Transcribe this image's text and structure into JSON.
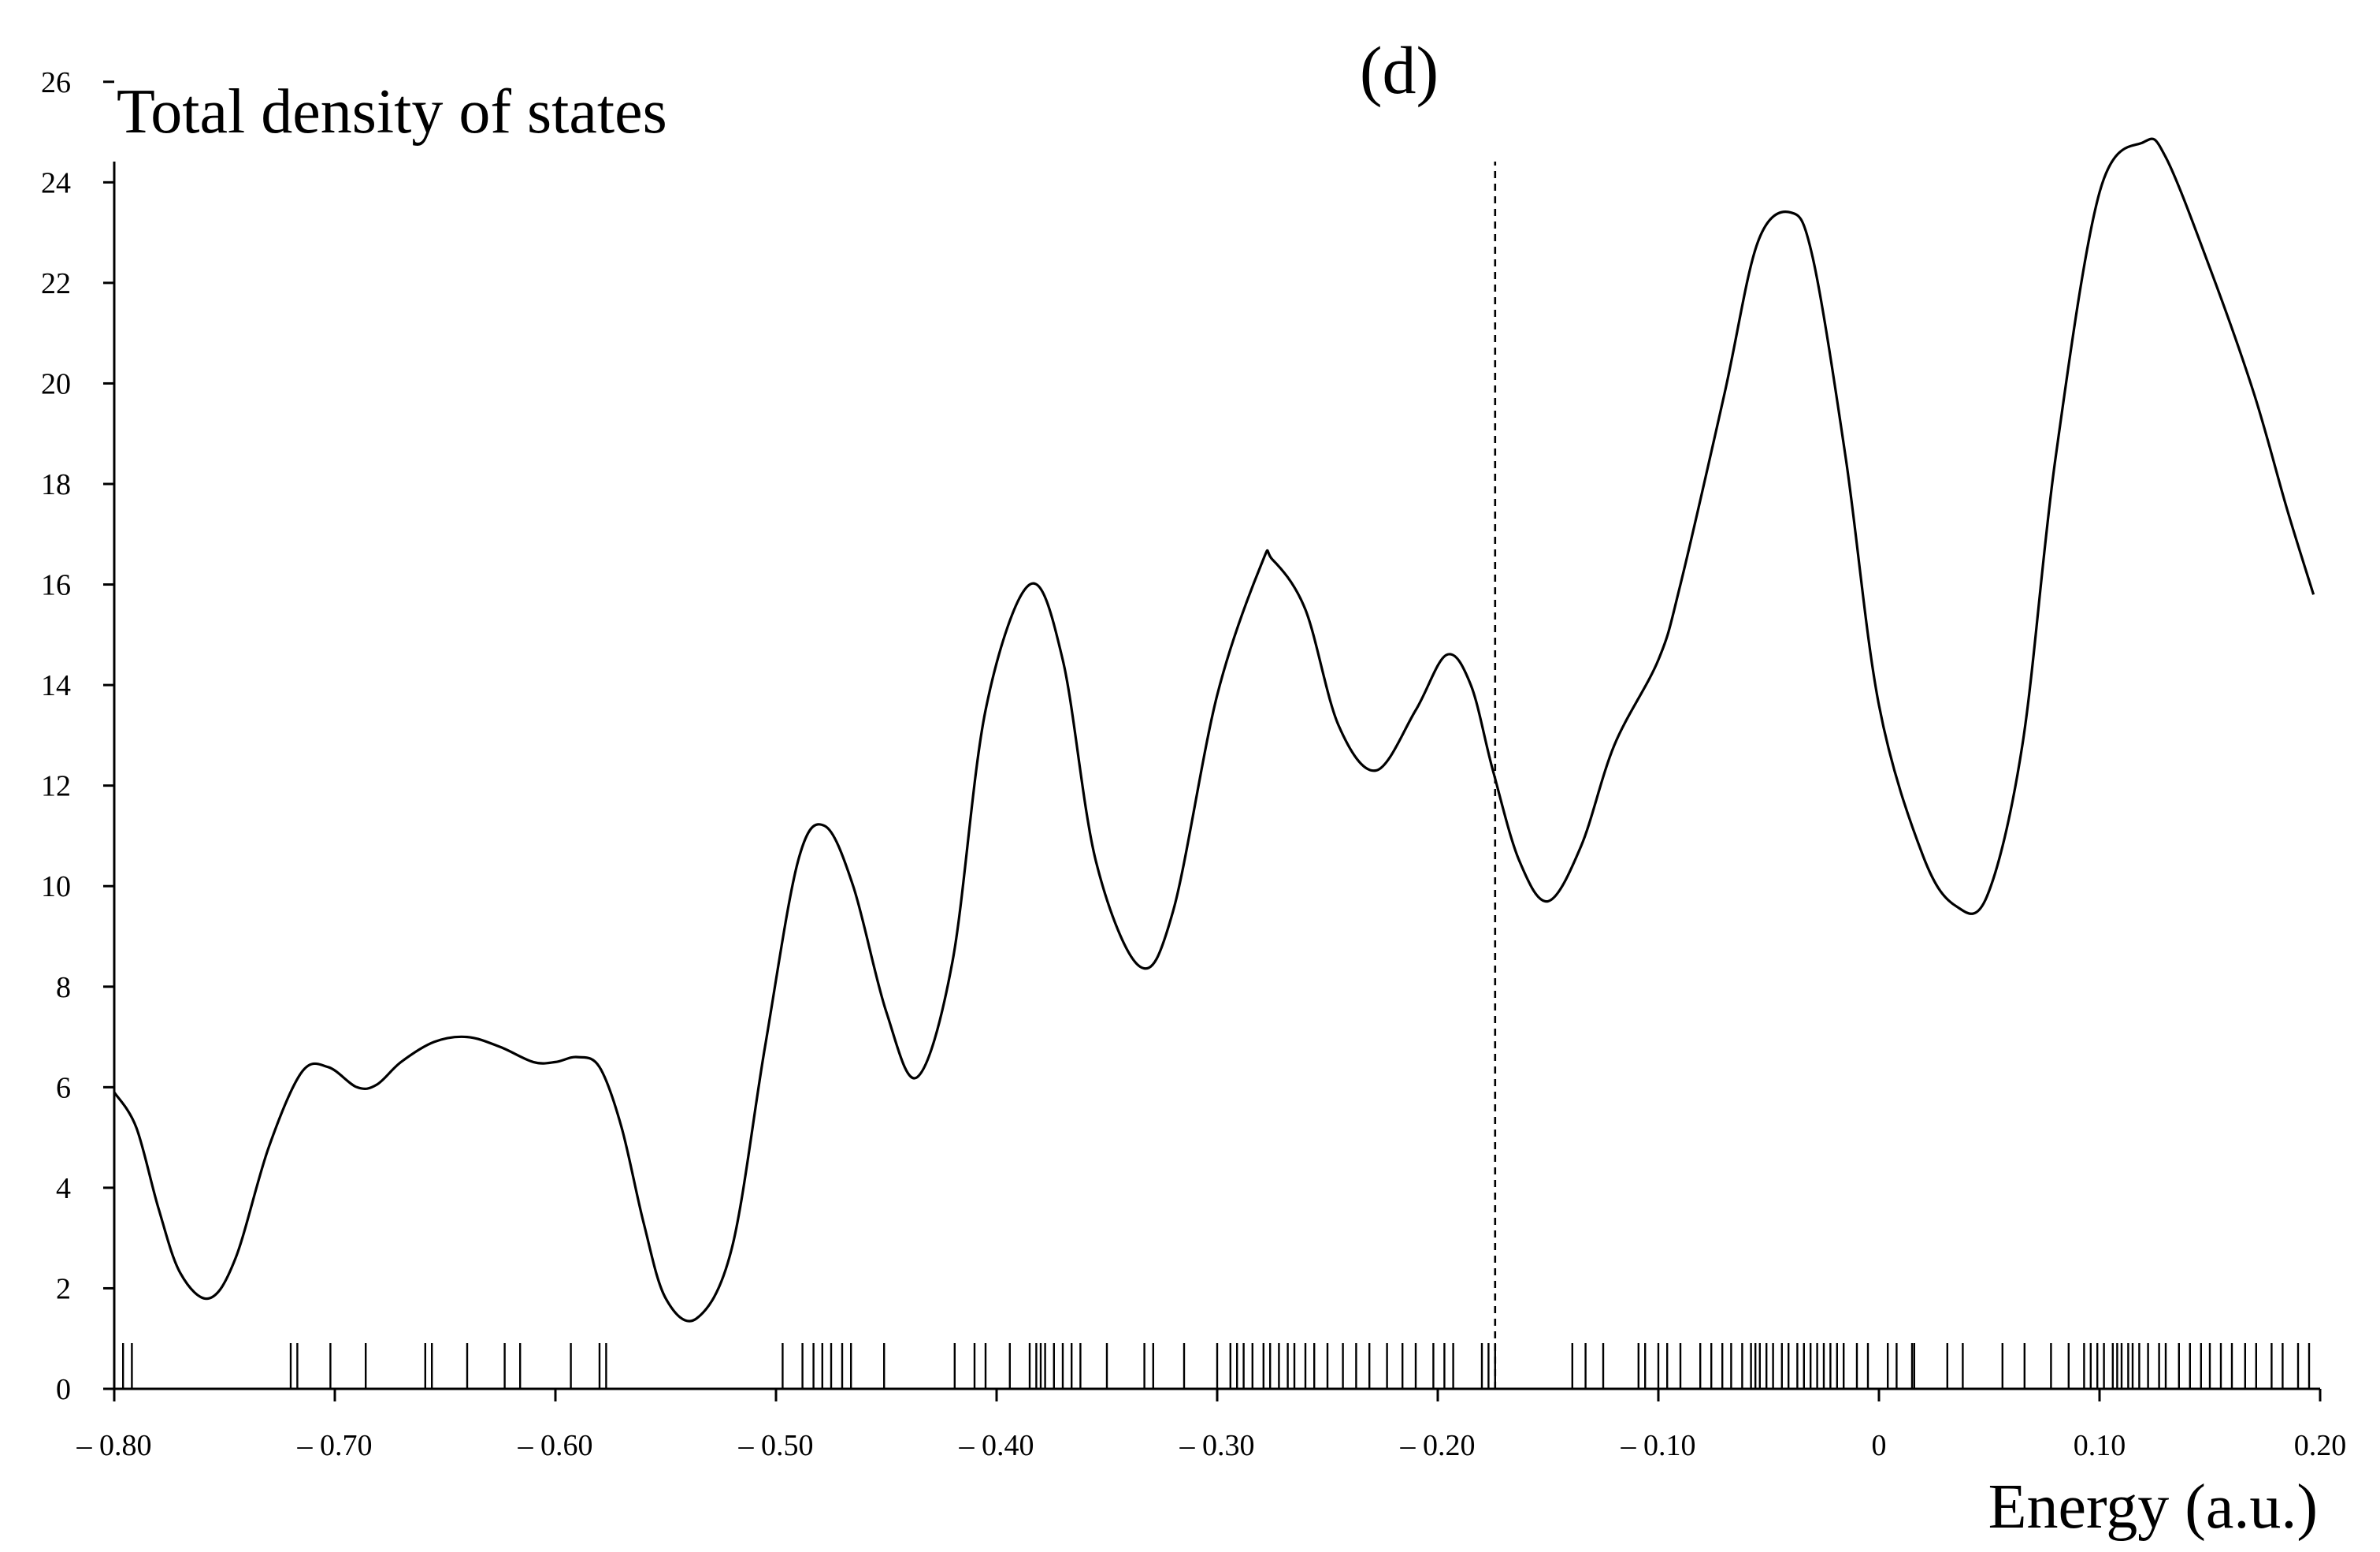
{
  "chart_data": {
    "type": "line",
    "title": "(d)",
    "ylabel": "Total density of states",
    "xlabel": "Energy (a.u.)",
    "xlim": [
      -0.8,
      0.2
    ],
    "ylim": [
      0,
      27
    ],
    "grid": false,
    "x_ticks": [
      -0.8,
      -0.7,
      -0.6,
      -0.5,
      -0.4,
      -0.3,
      -0.2,
      -0.1,
      0,
      0.1,
      0.2
    ],
    "x_tick_labels": [
      "– 0.80",
      "– 0.70",
      "– 0.60",
      "– 0.50",
      "– 0.40",
      "– 0.30",
      "– 0.20",
      "– 0.10",
      "0",
      "0.10",
      "0.20"
    ],
    "y_ticks": [
      0,
      2,
      4,
      6,
      8,
      10,
      12,
      14,
      16,
      18,
      20,
      22,
      24,
      26
    ],
    "y_tick_labels": [
      "0",
      "2",
      "4",
      "6",
      "8",
      "10",
      "12",
      "14",
      "16",
      "18",
      "20",
      "22",
      "24",
      "26"
    ],
    "fermi_level": -0.174,
    "series": [
      {
        "x": [
          -0.8,
          -0.79,
          -0.78,
          -0.77,
          -0.757,
          -0.745,
          -0.73,
          -0.715,
          -0.703,
          -0.69,
          -0.681,
          -0.67,
          -0.655,
          -0.64,
          -0.625,
          -0.61,
          -0.6,
          -0.59,
          -0.58,
          -0.57,
          -0.56,
          -0.55,
          -0.536,
          -0.52,
          -0.505,
          -0.49,
          -0.478,
          -0.465,
          -0.45,
          -0.436,
          -0.42,
          -0.405,
          -0.385,
          -0.37,
          -0.355,
          -0.335,
          -0.32,
          -0.3,
          -0.28,
          -0.275,
          -0.26,
          -0.245,
          -0.228,
          -0.21,
          -0.196,
          -0.185,
          -0.175,
          -0.163,
          -0.15,
          -0.135,
          -0.12,
          -0.1,
          -0.09,
          -0.07,
          -0.055,
          -0.04,
          -0.03,
          -0.015,
          0,
          0.02,
          0.035,
          0.049,
          0.065,
          0.08,
          0.1,
          0.12,
          0.13,
          0.15,
          0.17,
          0.185,
          0.197
        ],
        "values": [
          5.9,
          5.2,
          3.6,
          2.3,
          1.8,
          2.6,
          4.8,
          6.3,
          6.4,
          6.0,
          6.05,
          6.5,
          6.9,
          7.0,
          6.8,
          6.5,
          6.5,
          6.6,
          6.4,
          5.2,
          3.3,
          1.8,
          1.4,
          2.8,
          6.8,
          10.5,
          11.2,
          10.0,
          7.5,
          6.2,
          8.5,
          13.5,
          16.0,
          14.5,
          10.5,
          8.4,
          9.5,
          13.8,
          16.4,
          16.5,
          15.5,
          13.2,
          12.3,
          13.5,
          14.6,
          14.0,
          12.3,
          10.5,
          9.7,
          10.8,
          12.8,
          14.5,
          16.0,
          19.8,
          22.8,
          23.4,
          22.5,
          18.5,
          13.6,
          10.6,
          9.6,
          9.8,
          12.8,
          18.5,
          23.8,
          24.8,
          24.5,
          22.3,
          19.8,
          17.5,
          15.8
        ]
      }
    ],
    "eigenvalues": [
      -0.8,
      -0.796,
      -0.792,
      -0.72,
      -0.717,
      -0.702,
      -0.686,
      -0.659,
      -0.656,
      -0.64,
      -0.623,
      -0.616,
      -0.593,
      -0.58,
      -0.577,
      -0.497,
      -0.488,
      -0.483,
      -0.479,
      -0.475,
      -0.47,
      -0.466,
      -0.451,
      -0.419,
      -0.41,
      -0.405,
      -0.394,
      -0.385,
      -0.382,
      -0.38,
      -0.378,
      -0.374,
      -0.37,
      -0.366,
      -0.362,
      -0.35,
      -0.333,
      -0.329,
      -0.315,
      -0.3,
      -0.294,
      -0.291,
      -0.288,
      -0.284,
      -0.279,
      -0.276,
      -0.272,
      -0.268,
      -0.265,
      -0.26,
      -0.256,
      -0.25,
      -0.243,
      -0.237,
      -0.231,
      -0.223,
      -0.216,
      -0.21,
      -0.202,
      -0.197,
      -0.193,
      -0.18,
      -0.177,
      -0.174,
      -0.139,
      -0.133,
      -0.125,
      -0.109,
      -0.106,
      -0.1,
      -0.096,
      -0.09,
      -0.081,
      -0.076,
      -0.071,
      -0.067,
      -0.062,
      -0.058,
      -0.056,
      -0.054,
      -0.051,
      -0.048,
      -0.044,
      -0.041,
      -0.037,
      -0.034,
      -0.031,
      -0.028,
      -0.025,
      -0.022,
      -0.019,
      -0.016,
      -0.01,
      -0.005,
      0.004,
      0.008,
      0.015,
      0.016,
      0.031,
      0.038,
      0.056,
      0.066,
      0.078,
      0.086,
      0.093,
      0.096,
      0.099,
      0.102,
      0.106,
      0.108,
      0.11,
      0.113,
      0.115,
      0.118,
      0.122,
      0.127,
      0.13,
      0.136,
      0.141,
      0.146,
      0.15,
      0.155,
      0.16,
      0.166,
      0.171,
      0.178,
      0.183,
      0.19,
      0.195
    ]
  }
}
